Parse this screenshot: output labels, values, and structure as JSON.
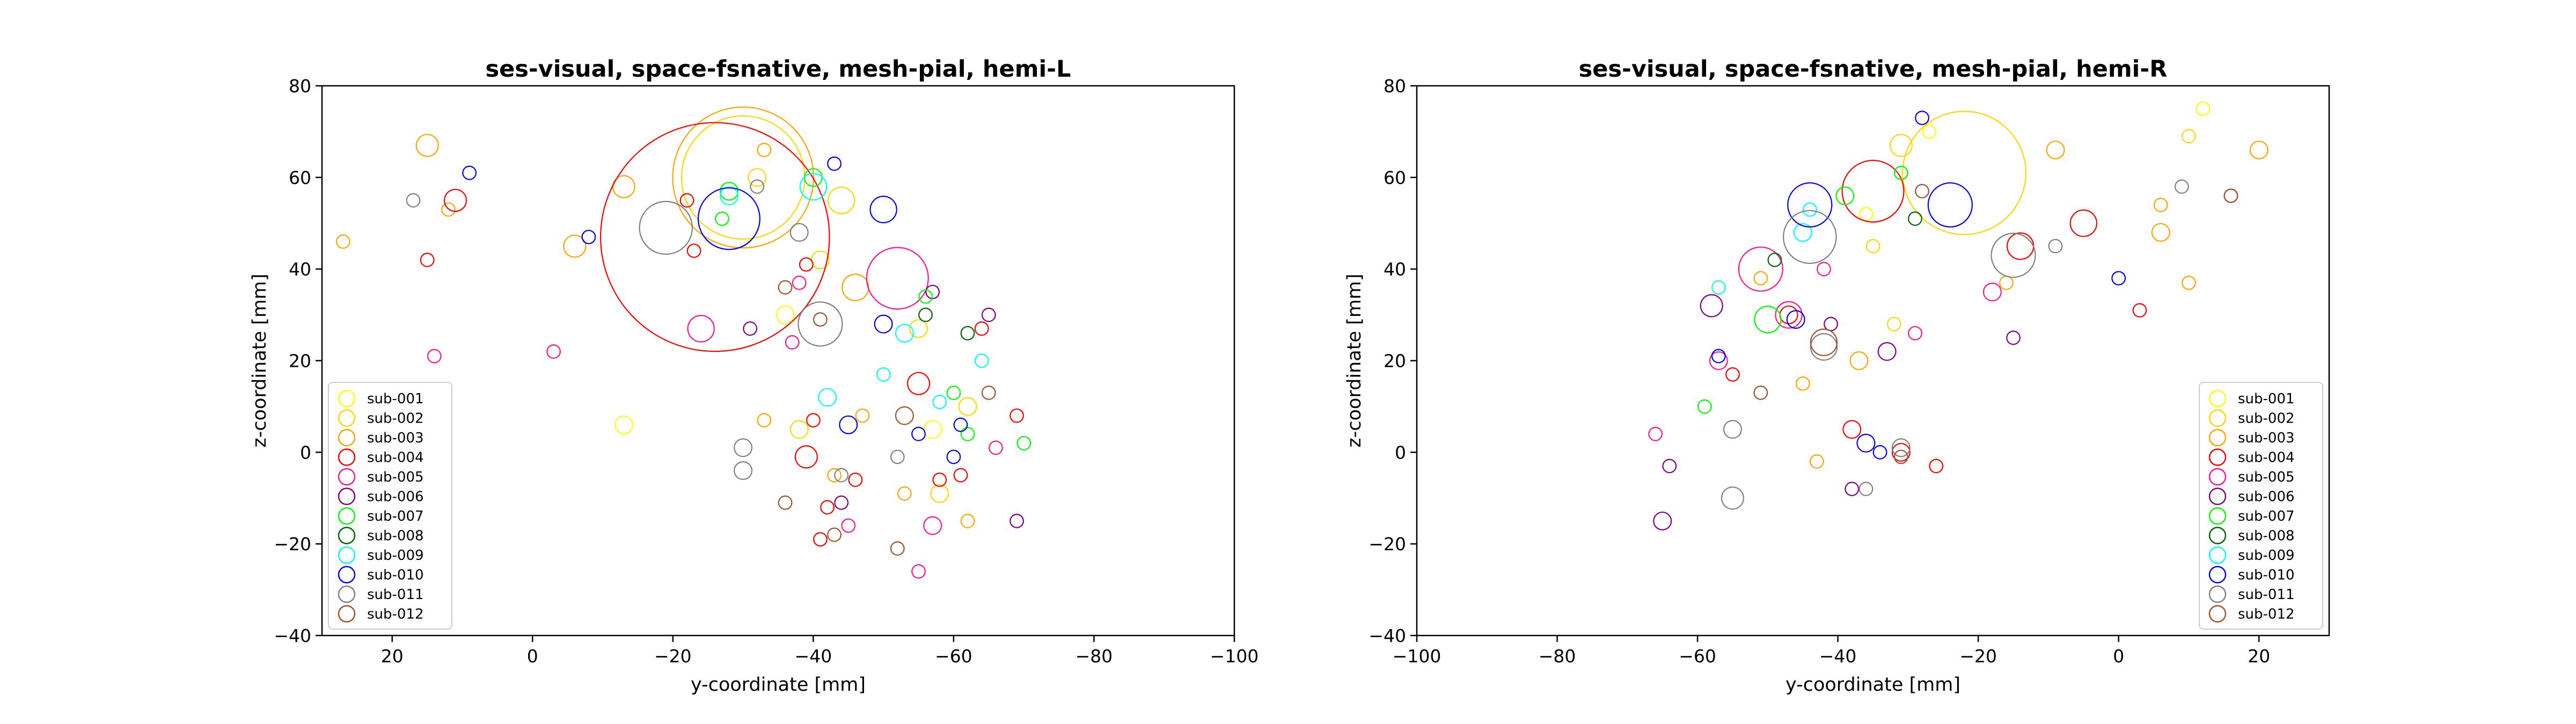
{
  "chart_data": [
    {
      "type": "scatter",
      "title": "ses-visual, space-fsnative, mesh-pial, hemi-L",
      "xlabel": "y-coordinate [mm]",
      "ylabel": "z-coordinate [mm]",
      "xlim": [
        30,
        -100
      ],
      "ylim": [
        -40,
        80
      ],
      "x_ticks": [
        20,
        0,
        -20,
        -40,
        -60,
        -80,
        -100
      ],
      "x_tick_labels": [
        "20",
        "0",
        "−20",
        "−40",
        "−60",
        "−80",
        "−100"
      ],
      "y_ticks": [
        80,
        60,
        40,
        20,
        0,
        -20,
        -40
      ],
      "y_tick_labels": [
        "80",
        "60",
        "40",
        "20",
        "0",
        "−20",
        "−40"
      ],
      "grid": false,
      "legend_position": "lower-left",
      "series": [
        {
          "name": "sub-001",
          "color": "#ffff00",
          "points": [
            [
              -13,
              6,
              2
            ],
            [
              -36,
              30,
              2
            ],
            [
              -57,
              5,
              2
            ]
          ]
        },
        {
          "name": "sub-002",
          "color": "#ffd700",
          "points": [
            [
              -30,
              60,
              14
            ],
            [
              -44,
              55,
              3
            ],
            [
              -32,
              60,
              2
            ],
            [
              -41,
              42,
              2
            ],
            [
              -55,
              27,
              2
            ],
            [
              -62,
              10,
              2
            ],
            [
              -38,
              5,
              2
            ],
            [
              -58,
              -9,
              2
            ]
          ]
        },
        {
          "name": "sub-003",
          "color": "#ffa500",
          "points": [
            [
              -30,
              60,
              16
            ],
            [
              15,
              67,
              2.5
            ],
            [
              -13,
              58,
              2.5
            ],
            [
              -6,
              45,
              2.5
            ],
            [
              -46,
              36,
              3
            ],
            [
              -47,
              8,
              1.5
            ],
            [
              -33,
              7,
              1.5
            ],
            [
              -43,
              -5,
              1.5
            ],
            [
              -53,
              -9,
              1.5
            ],
            [
              -33,
              66,
              1.5
            ],
            [
              27,
              46,
              1.5
            ],
            [
              12,
              53,
              1.5
            ],
            [
              -62,
              -15,
              1.5
            ]
          ]
        },
        {
          "name": "sub-004",
          "color": "#ff0000",
          "points": [
            [
              -26,
              47,
              26
            ],
            [
              11,
              55,
              2.5
            ],
            [
              -55,
              15,
              2.5
            ],
            [
              -39,
              -1,
              2.5
            ],
            [
              15,
              42,
              1.5
            ],
            [
              -22,
              55,
              1.5
            ],
            [
              -39,
              41,
              1.5
            ],
            [
              -46,
              -6,
              1.5
            ],
            [
              -61,
              -5,
              1.5
            ],
            [
              -69,
              8,
              1.5
            ],
            [
              -42,
              -12,
              1.5
            ],
            [
              -41,
              -19,
              1.5
            ],
            [
              -64,
              27,
              1.5
            ],
            [
              -40,
              7,
              1.5
            ],
            [
              -23,
              44,
              1.5
            ],
            [
              -58,
              -6,
              1.5
            ]
          ]
        },
        {
          "name": "sub-005",
          "color": "#ff1493",
          "points": [
            [
              -52,
              38,
              7
            ],
            [
              -24,
              27,
              3
            ],
            [
              -37,
              24,
              1.5
            ],
            [
              14,
              21,
              1.5
            ],
            [
              -57,
              -16,
              2
            ],
            [
              -45,
              -16,
              1.5
            ],
            [
              -66,
              1,
              1.5
            ],
            [
              -38,
              37,
              1.5
            ],
            [
              -3,
              22,
              1.5
            ],
            [
              -55,
              -26,
              1.5
            ]
          ]
        },
        {
          "name": "sub-006",
          "color": "#800080",
          "points": [
            [
              -31,
              27,
              1.5
            ],
            [
              -57,
              35,
              1.5
            ],
            [
              -44,
              -11,
              1.5
            ],
            [
              -69,
              -15,
              1.5
            ],
            [
              -65,
              30,
              1.5
            ]
          ]
        },
        {
          "name": "sub-007",
          "color": "#00ff00",
          "points": [
            [
              -28,
              57,
              2
            ],
            [
              -40,
              60,
              2
            ],
            [
              -56,
              34,
              1.5
            ],
            [
              -60,
              13,
              1.5
            ],
            [
              -62,
              4,
              1.5
            ],
            [
              -70,
              2,
              1.5
            ],
            [
              -27,
              51,
              1.5
            ]
          ]
        },
        {
          "name": "sub-008",
          "color": "#006400",
          "points": [
            [
              -56,
              30,
              1.5
            ],
            [
              -62,
              26,
              1.5
            ]
          ]
        },
        {
          "name": "sub-009",
          "color": "#00ffff",
          "points": [
            [
              -40,
              58,
              3
            ],
            [
              -28,
              56,
              2
            ],
            [
              -42,
              12,
              2
            ],
            [
              -53,
              26,
              2
            ],
            [
              -58,
              11,
              1.5
            ],
            [
              -64,
              20,
              1.5
            ],
            [
              -50,
              17,
              1.5
            ]
          ]
        },
        {
          "name": "sub-010",
          "color": "#0000ff",
          "points": [
            [
              -28,
              51,
              7
            ],
            [
              -50,
              53,
              3
            ],
            [
              9,
              61,
              1.5
            ],
            [
              -8,
              47,
              1.5
            ],
            [
              -45,
              6,
              2
            ],
            [
              -50,
              28,
              2
            ],
            [
              -43,
              63,
              1.5
            ],
            [
              -61,
              6,
              1.5
            ],
            [
              -55,
              4,
              1.5
            ],
            [
              -60,
              -1,
              1.5
            ]
          ]
        },
        {
          "name": "sub-011",
          "color": "#808080",
          "points": [
            [
              -19,
              49,
              6
            ],
            [
              -41,
              28,
              5
            ],
            [
              -38,
              48,
              2
            ],
            [
              -30,
              1,
              2
            ],
            [
              -30,
              -4,
              2
            ],
            [
              17,
              55,
              1.5
            ],
            [
              -44,
              -5,
              1.5
            ],
            [
              -52,
              -1,
              1.5
            ],
            [
              -32,
              58,
              1.5
            ]
          ]
        },
        {
          "name": "sub-012",
          "color": "#a0522d",
          "points": [
            [
              -53,
              8,
              2
            ],
            [
              -36,
              36,
              1.5
            ],
            [
              -52,
              -21,
              1.5
            ],
            [
              -36,
              -11,
              1.5
            ],
            [
              -43,
              -18,
              1.5
            ],
            [
              -41,
              29,
              1.5
            ],
            [
              -65,
              13,
              1.5
            ]
          ]
        }
      ]
    },
    {
      "type": "scatter",
      "title": "ses-visual, space-fsnative, mesh-pial, hemi-R",
      "xlabel": "y-coordinate [mm]",
      "ylabel": "z-coordinate [mm]",
      "xlim": [
        -100,
        30
      ],
      "ylim": [
        -40,
        80
      ],
      "x_ticks": [
        -100,
        -80,
        -60,
        -40,
        -20,
        0,
        20
      ],
      "x_tick_labels": [
        "−100",
        "−80",
        "−60",
        "−40",
        "−20",
        "0",
        "20"
      ],
      "y_ticks": [
        80,
        60,
        40,
        20,
        0,
        -20,
        -40
      ],
      "y_tick_labels": [
        "80",
        "60",
        "40",
        "20",
        "0",
        "−20",
        "−40"
      ],
      "grid": false,
      "legend_position": "lower-right",
      "series": [
        {
          "name": "sub-001",
          "color": "#ffff00",
          "points": [
            [
              -36,
              52,
              1.5
            ],
            [
              -27,
              70,
              1.5
            ],
            [
              12,
              75,
              1.5
            ]
          ]
        },
        {
          "name": "sub-002",
          "color": "#ffd700",
          "points": [
            [
              -22,
              61,
              14
            ],
            [
              -31,
              67,
              2.5
            ],
            [
              -35,
              45,
              1.5
            ],
            [
              10,
              69,
              1.5
            ],
            [
              -32,
              28,
              1.5
            ]
          ]
        },
        {
          "name": "sub-003",
          "color": "#ffa500",
          "points": [
            [
              20,
              66,
              2
            ],
            [
              6,
              48,
              2
            ],
            [
              -37,
              20,
              2
            ],
            [
              -9,
              66,
              2
            ],
            [
              -43,
              -2,
              1.5
            ],
            [
              -51,
              38,
              1.5
            ],
            [
              -16,
              37,
              1.5
            ],
            [
              -45,
              15,
              1.5
            ],
            [
              10,
              37,
              1.5
            ],
            [
              6,
              54,
              1.5
            ]
          ]
        },
        {
          "name": "sub-004",
          "color": "#ff0000",
          "points": [
            [
              -35,
              57,
              7
            ],
            [
              -5,
              50,
              3
            ],
            [
              -14,
              45,
              3
            ],
            [
              -38,
              5,
              2
            ],
            [
              -31,
              0,
              2
            ],
            [
              -47,
              30,
              2
            ],
            [
              16,
              56,
              1.5
            ],
            [
              -55,
              17,
              1.5
            ],
            [
              -26,
              -3,
              1.5
            ],
            [
              3,
              31,
              1.5
            ]
          ]
        },
        {
          "name": "sub-005",
          "color": "#ff1493",
          "points": [
            [
              -51,
              40,
              5
            ],
            [
              -47,
              30,
              3
            ],
            [
              -18,
              35,
              2
            ],
            [
              -57,
              20,
              2
            ],
            [
              -66,
              4,
              1.5
            ],
            [
              -42,
              40,
              1.5
            ],
            [
              -29,
              26,
              1.5
            ]
          ]
        },
        {
          "name": "sub-006",
          "color": "#800080",
          "points": [
            [
              -58,
              32,
              2.5
            ],
            [
              -65,
              -15,
              2
            ],
            [
              -33,
              22,
              2
            ],
            [
              -15,
              25,
              1.5
            ],
            [
              -41,
              28,
              1.5
            ],
            [
              -38,
              -8,
              1.5
            ],
            [
              -64,
              -3,
              1.5
            ]
          ]
        },
        {
          "name": "sub-007",
          "color": "#00ff00",
          "points": [
            [
              -50,
              29,
              3
            ],
            [
              -39,
              56,
              2
            ],
            [
              -31,
              61,
              1.5
            ],
            [
              -59,
              10,
              1.5
            ]
          ]
        },
        {
          "name": "sub-008",
          "color": "#006400",
          "points": [
            [
              -49,
              42,
              1.5
            ],
            [
              -29,
              51,
              1.5
            ]
          ]
        },
        {
          "name": "sub-009",
          "color": "#00ffff",
          "points": [
            [
              -45,
              48,
              2
            ],
            [
              -44,
              53,
              1.5
            ],
            [
              -57,
              36,
              1.5
            ]
          ]
        },
        {
          "name": "sub-010",
          "color": "#0000ff",
          "points": [
            [
              -44,
              54,
              5
            ],
            [
              -24,
              54,
              5
            ],
            [
              -36,
              2,
              2
            ],
            [
              -46,
              29,
              2
            ],
            [
              0,
              38,
              1.5
            ],
            [
              -28,
              73,
              1.5
            ],
            [
              -34,
              0,
              1.5
            ],
            [
              -57,
              21,
              1.5
            ]
          ]
        },
        {
          "name": "sub-011",
          "color": "#808080",
          "points": [
            [
              -44,
              47,
              6
            ],
            [
              -15,
              43,
              5
            ],
            [
              -42,
              23,
              3
            ],
            [
              -55,
              -10,
              2.5
            ],
            [
              -55,
              5,
              2
            ],
            [
              -31,
              1,
              2
            ],
            [
              9,
              58,
              1.5
            ],
            [
              -9,
              45,
              1.5
            ],
            [
              -36,
              -8,
              1.5
            ]
          ]
        },
        {
          "name": "sub-012",
          "color": "#a0522d",
          "points": [
            [
              -42,
              24,
              3
            ],
            [
              -28,
              57,
              1.5
            ],
            [
              16,
              56,
              1.5
            ],
            [
              -31,
              -1,
              1.5
            ],
            [
              -51,
              13,
              1.5
            ]
          ]
        }
      ]
    }
  ]
}
